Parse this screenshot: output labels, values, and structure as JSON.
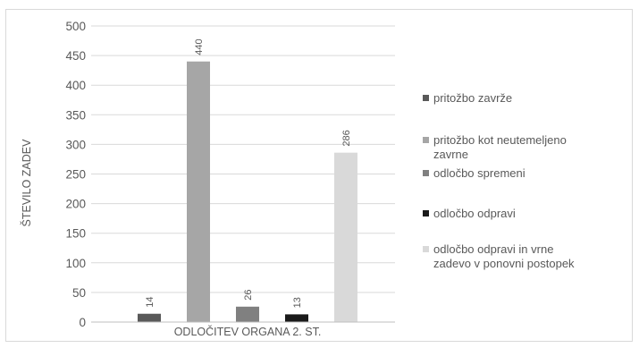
{
  "chart_data": {
    "type": "bar",
    "xlabel": "ODLOČITEV ORGANA 2. ST.",
    "ylabel": "ŠTEVILO ZADEV",
    "ylim": [
      0,
      500
    ],
    "yticks": [
      "0",
      "50",
      "100",
      "150",
      "200",
      "250",
      "300",
      "350",
      "400",
      "450",
      "500"
    ],
    "grid": true,
    "legend_position": "right",
    "series": [
      {
        "name": "pritožbo zavrže",
        "value": 14,
        "label": "14",
        "color": "#595959"
      },
      {
        "name": "pritožbo kot neutemeljeno zavrne",
        "value": 440,
        "label": "440",
        "color": "#a6a6a6"
      },
      {
        "name": "odločbo spremeni",
        "value": 26,
        "label": "26",
        "color": "#808080"
      },
      {
        "name": "odločbo odpravi",
        "value": 13,
        "label": "13",
        "color": "#1a1a1a"
      },
      {
        "name": "odločbo odpravi in vrne zadevo v ponovni postopek",
        "value": 286,
        "label": "286",
        "color": "#d9d9d9"
      }
    ]
  }
}
